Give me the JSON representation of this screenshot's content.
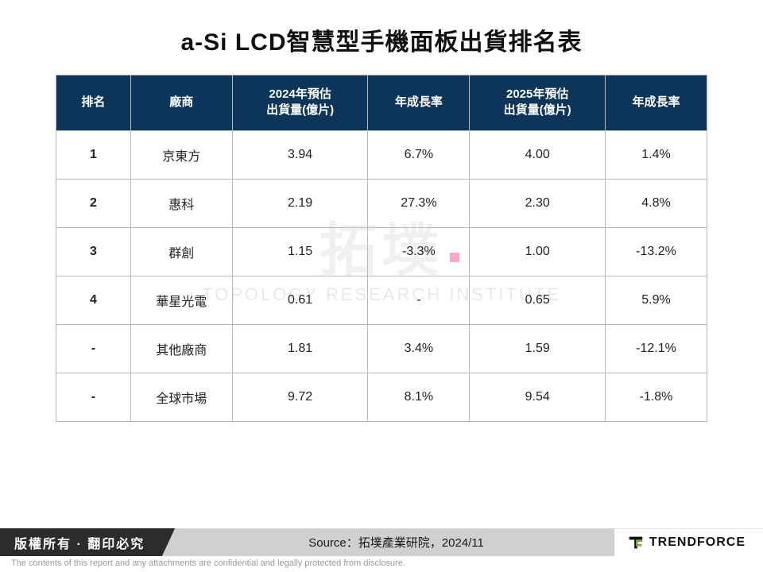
{
  "title": "a-Si LCD智慧型手機面板出貨排名表",
  "table": {
    "type": "table",
    "header_bg": "#0c3559",
    "header_fg": "#ffffff",
    "border_color": "#b9b9b9",
    "columns": [
      {
        "label": "排名",
        "width_pct": 11
      },
      {
        "label": "廠商",
        "width_pct": 15
      },
      {
        "label": "2024年預估\n出貨量(億片)",
        "width_pct": 20
      },
      {
        "label": "年成長率",
        "width_pct": 15
      },
      {
        "label": "2025年預估\n出貨量(億片)",
        "width_pct": 20
      },
      {
        "label": "年成長率",
        "width_pct": 15
      }
    ],
    "rows": [
      {
        "rank": "1",
        "vendor": "京東方",
        "ship2024": "3.94",
        "yoy2024": "6.7%",
        "ship2025": "4.00",
        "yoy2025": "1.4%"
      },
      {
        "rank": "2",
        "vendor": "惠科",
        "ship2024": "2.19",
        "yoy2024": "27.3%",
        "ship2025": "2.30",
        "yoy2025": "4.8%"
      },
      {
        "rank": "3",
        "vendor": "群創",
        "ship2024": "1.15",
        "yoy2024": "-3.3%",
        "ship2025": "1.00",
        "yoy2025": "-13.2%"
      },
      {
        "rank": "4",
        "vendor": "華星光電",
        "ship2024": "0.61",
        "yoy2024": "-",
        "ship2025": "0.65",
        "yoy2025": "5.9%"
      },
      {
        "rank": "-",
        "vendor": "其他廠商",
        "ship2024": "1.81",
        "yoy2024": "3.4%",
        "ship2025": "1.59",
        "yoy2025": "-12.1%"
      },
      {
        "rank": "-",
        "vendor": "全球市場",
        "ship2024": "9.72",
        "yoy2024": "8.1%",
        "ship2025": "9.54",
        "yoy2025": "-1.8%"
      }
    ],
    "font_size_header": 15,
    "font_size_body": 16
  },
  "watermark": {
    "line1": "拓墣",
    "line2": "TOPOLOGY RESEARCH INSTITUTE",
    "color": "rgba(0,0,0,0.07)"
  },
  "footer": {
    "copyright": "版權所有 · 翻印必究",
    "source": "Source：拓墣產業研院，2024/11",
    "brand": "TRENDFORCE",
    "footer_left_bg": "#2c2c2c",
    "footer_mid_bg": "#d0d0d0"
  },
  "disclaimer": "The contents of this report and any attachments are confidential and legally protected from disclosure."
}
